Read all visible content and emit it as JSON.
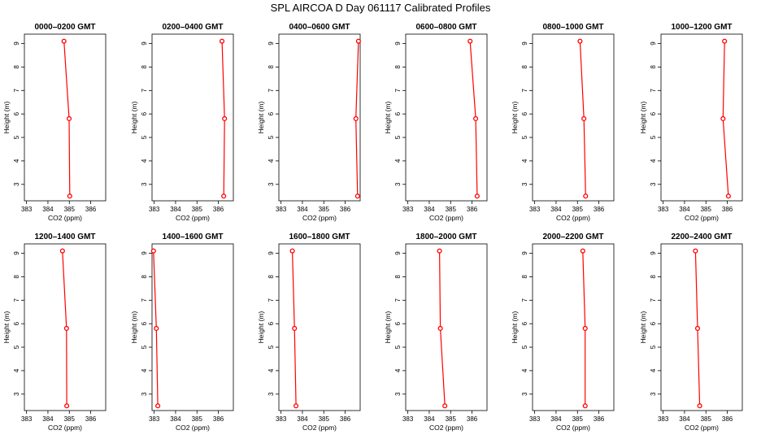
{
  "figure": {
    "title": "SPL AIRCOA D  Day 061117  Calibrated Profiles"
  },
  "chart_data": {
    "type": "line",
    "panels": [
      {
        "title": "0000–0200 GMT",
        "xlabel": "CO2 (ppm)",
        "ylabel": "Height (m)",
        "xlim": [
          382.9,
          386.7
        ],
        "ylim": [
          2.3,
          9.4
        ],
        "x_ticks": [
          383,
          384,
          385,
          386
        ],
        "y_ticks": [
          3,
          4,
          5,
          6,
          7,
          8,
          9
        ],
        "points": [
          {
            "x": 384.75,
            "y": 9.1
          },
          {
            "x": 384.99,
            "y": 5.8
          },
          {
            "x": 385.02,
            "y": 2.5
          }
        ]
      },
      {
        "title": "0200–0400 GMT",
        "xlabel": "CO2 (ppm)",
        "ylabel": "Height (m)",
        "xlim": [
          382.9,
          386.7
        ],
        "ylim": [
          2.3,
          9.4
        ],
        "x_ticks": [
          383,
          384,
          385,
          386
        ],
        "y_ticks": [
          3,
          4,
          5,
          6,
          7,
          8,
          9
        ],
        "points": [
          {
            "x": 386.17,
            "y": 9.1
          },
          {
            "x": 386.29,
            "y": 5.8
          },
          {
            "x": 386.25,
            "y": 2.5
          }
        ]
      },
      {
        "title": "0400–0600 GMT",
        "xlabel": "CO2 (ppm)",
        "ylabel": "Height (m)",
        "xlim": [
          382.9,
          386.7
        ],
        "ylim": [
          2.3,
          9.4
        ],
        "x_ticks": [
          383,
          384,
          385,
          386
        ],
        "y_ticks": [
          3,
          4,
          5,
          6,
          7,
          8,
          9
        ],
        "points": [
          {
            "x": 386.62,
            "y": 9.1
          },
          {
            "x": 386.5,
            "y": 5.8
          },
          {
            "x": 386.58,
            "y": 2.5
          }
        ]
      },
      {
        "title": "0600–0800 GMT",
        "xlabel": "CO2 (ppm)",
        "ylabel": "Height (m)",
        "xlim": [
          382.9,
          386.7
        ],
        "ylim": [
          2.3,
          9.4
        ],
        "x_ticks": [
          383,
          384,
          385,
          386
        ],
        "y_ticks": [
          3,
          4,
          5,
          6,
          7,
          8,
          9
        ],
        "points": [
          {
            "x": 385.91,
            "y": 9.1
          },
          {
            "x": 386.17,
            "y": 5.8
          },
          {
            "x": 386.24,
            "y": 2.5
          }
        ]
      },
      {
        "title": "0800–1000 GMT",
        "xlabel": "CO2 (ppm)",
        "ylabel": "Height (m)",
        "xlim": [
          382.9,
          386.7
        ],
        "ylim": [
          2.3,
          9.4
        ],
        "x_ticks": [
          383,
          384,
          385,
          386
        ],
        "y_ticks": [
          3,
          4,
          5,
          6,
          7,
          8,
          9
        ],
        "points": [
          {
            "x": 385.12,
            "y": 9.1
          },
          {
            "x": 385.3,
            "y": 5.8
          },
          {
            "x": 385.38,
            "y": 2.5
          }
        ]
      },
      {
        "title": "1000–1200 GMT",
        "xlabel": "CO2 (ppm)",
        "ylabel": "Height (m)",
        "xlim": [
          382.9,
          386.7
        ],
        "ylim": [
          2.3,
          9.4
        ],
        "x_ticks": [
          383,
          384,
          385,
          386
        ],
        "y_ticks": [
          3,
          4,
          5,
          6,
          7,
          8,
          9
        ],
        "points": [
          {
            "x": 385.87,
            "y": 9.1
          },
          {
            "x": 385.8,
            "y": 5.8
          },
          {
            "x": 386.05,
            "y": 2.5
          }
        ]
      },
      {
        "title": "1200–1400 GMT",
        "xlabel": "CO2 (ppm)",
        "ylabel": "Height (m)",
        "xlim": [
          382.9,
          386.7
        ],
        "ylim": [
          2.3,
          9.4
        ],
        "x_ticks": [
          383,
          384,
          385,
          386
        ],
        "y_ticks": [
          3,
          4,
          5,
          6,
          7,
          8,
          9
        ],
        "points": [
          {
            "x": 384.68,
            "y": 9.1
          },
          {
            "x": 384.87,
            "y": 5.8
          },
          {
            "x": 384.88,
            "y": 2.5
          }
        ]
      },
      {
        "title": "1400–1600 GMT",
        "xlabel": "CO2 (ppm)",
        "ylabel": "Height (m)",
        "xlim": [
          382.9,
          386.7
        ],
        "ylim": [
          2.3,
          9.4
        ],
        "x_ticks": [
          383,
          384,
          385,
          386
        ],
        "y_ticks": [
          3,
          4,
          5,
          6,
          7,
          8,
          9
        ],
        "points": [
          {
            "x": 382.97,
            "y": 9.1
          },
          {
            "x": 383.1,
            "y": 5.8
          },
          {
            "x": 383.17,
            "y": 2.5
          }
        ]
      },
      {
        "title": "1600–1800 GMT",
        "xlabel": "CO2 (ppm)",
        "ylabel": "Height (m)",
        "xlim": [
          382.9,
          386.7
        ],
        "ylim": [
          2.3,
          9.4
        ],
        "x_ticks": [
          383,
          384,
          385,
          386
        ],
        "y_ticks": [
          3,
          4,
          5,
          6,
          7,
          8,
          9
        ],
        "points": [
          {
            "x": 383.53,
            "y": 9.1
          },
          {
            "x": 383.63,
            "y": 5.8
          },
          {
            "x": 383.7,
            "y": 2.5
          }
        ]
      },
      {
        "title": "1800–2000 GMT",
        "xlabel": "CO2 (ppm)",
        "ylabel": "Height (m)",
        "xlim": [
          382.9,
          386.7
        ],
        "ylim": [
          2.3,
          9.4
        ],
        "x_ticks": [
          383,
          384,
          385,
          386
        ],
        "y_ticks": [
          3,
          4,
          5,
          6,
          7,
          8,
          9
        ],
        "points": [
          {
            "x": 384.48,
            "y": 9.1
          },
          {
            "x": 384.52,
            "y": 5.8
          },
          {
            "x": 384.73,
            "y": 2.5
          }
        ]
      },
      {
        "title": "2000–2200 GMT",
        "xlabel": "CO2 (ppm)",
        "ylabel": "Height (m)",
        "xlim": [
          382.9,
          386.7
        ],
        "ylim": [
          2.3,
          9.4
        ],
        "x_ticks": [
          383,
          384,
          385,
          386
        ],
        "y_ticks": [
          3,
          4,
          5,
          6,
          7,
          8,
          9
        ],
        "points": [
          {
            "x": 385.25,
            "y": 9.1
          },
          {
            "x": 385.36,
            "y": 5.8
          },
          {
            "x": 385.36,
            "y": 2.5
          }
        ]
      },
      {
        "title": "2200–2400 GMT",
        "xlabel": "CO2 (ppm)",
        "ylabel": "Height (m)",
        "xlim": [
          382.9,
          386.7
        ],
        "ylim": [
          2.3,
          9.4
        ],
        "x_ticks": [
          383,
          384,
          385,
          386
        ],
        "y_ticks": [
          3,
          4,
          5,
          6,
          7,
          8,
          9
        ],
        "points": [
          {
            "x": 384.51,
            "y": 9.1
          },
          {
            "x": 384.61,
            "y": 5.8
          },
          {
            "x": 384.71,
            "y": 2.5
          }
        ]
      }
    ],
    "line_color": "#ff0000",
    "marker_color": "#ff0000",
    "grid": false
  }
}
